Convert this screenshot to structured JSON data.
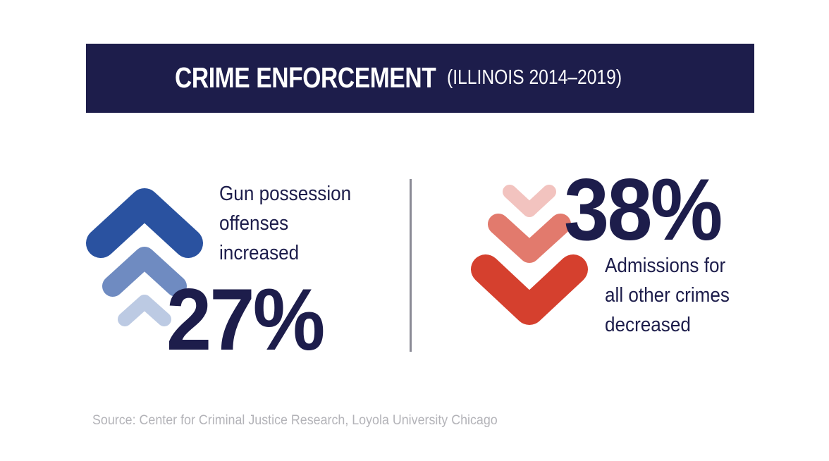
{
  "header": {
    "title": "CRIME ENFORCEMENT",
    "subtitle": "(ILLINOIS 2014–2019)"
  },
  "left_stat": {
    "value": "27%",
    "description_lines": [
      "Gun possession",
      "offenses",
      "increased"
    ],
    "icon": "chevrons-up-icon",
    "colors": [
      "#2a52a0",
      "#6f8bc1",
      "#bccae3"
    ]
  },
  "right_stat": {
    "value": "38%",
    "description_lines": [
      "Admissions for",
      "all other crimes",
      "decreased"
    ],
    "icon": "chevrons-down-icon",
    "colors": [
      "#f2c3bf",
      "#e27a6d",
      "#d5402e"
    ]
  },
  "source": "Source: Center for Criminal Justice Research, Loyola University Chicago",
  "colors": {
    "navy": "#1d1d4b",
    "divider": "#8a8a95",
    "source_text": "#b3b3b8"
  }
}
